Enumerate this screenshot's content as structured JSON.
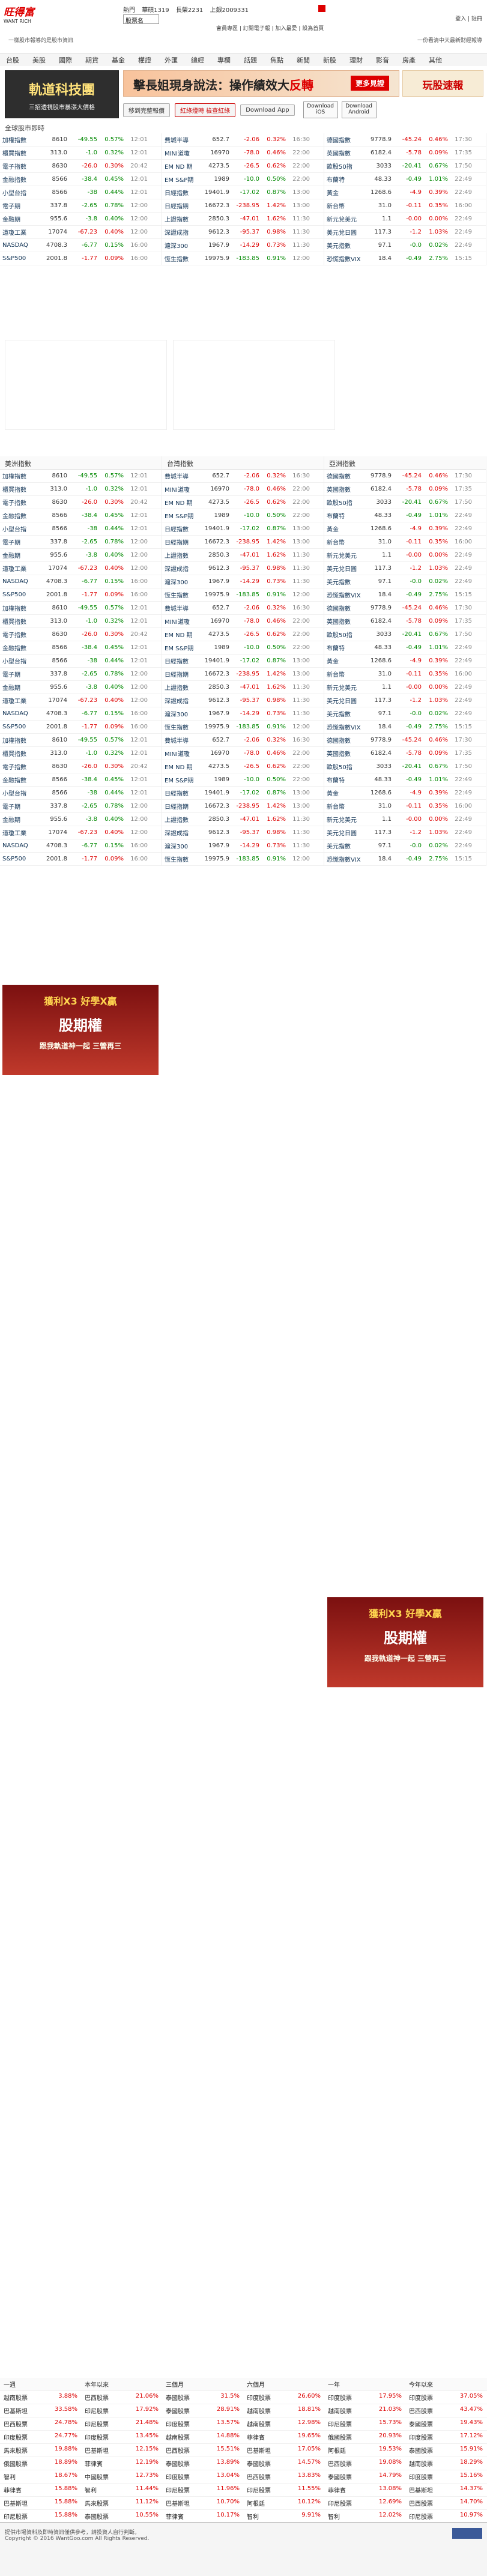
{
  "header": {
    "logo_text": "旺得富",
    "logo_sub": "WANT RICH",
    "hot_label": "熱門",
    "hot_items": [
      "華碩1319",
      "長榮2231",
      "上銀2009331"
    ],
    "select_value": "股票名",
    "top_links": "會員專區 | 訂閱電子報 | 加入最愛 | 設為首頁",
    "right_links": "登入 | 註冊",
    "slogan": "一樣股市報導的是股市資訊",
    "slogan_right": "一份看清中天最新財經報導",
    "nav": [
      "台股",
      "美股",
      "國際",
      "期貨",
      "基金",
      "權證",
      "外匯",
      "總經",
      "專欄",
      "話題",
      "焦點",
      "新聞",
      "新股",
      "理財",
      "影音",
      "房產",
      "其他"
    ]
  },
  "banner": {
    "ad1_title": "軌道科技團",
    "ad1_sub": "三招透視股市暴漲大價格",
    "ad2_text": "擊長姐現身說法：操作績效大",
    "ad2_bold": "反轉",
    "ad2_more": "更多見證",
    "ad3_text": "玩股速報",
    "buttons": [
      "移到完整報價",
      "紅綠燈時 檢查紅綠",
      "Download App"
    ],
    "download1": "Download iOS",
    "download2": "Download Android"
  },
  "section_title": "全球股市即時",
  "quotes": {
    "col1": [
      {
        "n": "加權指數",
        "v": "8610",
        "c": "-49.55",
        "p": "0.57%",
        "t": "12:01",
        "d": "dn"
      },
      {
        "n": "櫃買指數",
        "v": "313.0",
        "c": "-1.0",
        "p": "0.32%",
        "t": "12:01",
        "d": "dn"
      },
      {
        "n": "電子指數",
        "v": "8630",
        "c": "-26.0",
        "p": "0.30%",
        "t": "20:42",
        "d": "up"
      },
      {
        "n": "金融指數",
        "v": "8566",
        "c": "-38.4",
        "p": "0.45%",
        "t": "12:01",
        "d": "dn"
      },
      {
        "n": "小型台指",
        "v": "8566",
        "c": "-38",
        "p": "0.44%",
        "t": "12:01",
        "d": "dn"
      },
      {
        "n": "電子期",
        "v": "337.8",
        "c": "-2.65",
        "p": "0.78%",
        "t": "12:00",
        "d": "dn"
      },
      {
        "n": "金融期",
        "v": "955.6",
        "c": "-3.8",
        "p": "0.40%",
        "t": "12:00",
        "d": "dn"
      },
      {
        "n": "道瓊工業",
        "v": "17074",
        "c": "-67.23",
        "p": "0.40%",
        "t": "12:00",
        "d": "up"
      },
      {
        "n": "NASDAQ",
        "v": "4708.3",
        "c": "-6.77",
        "p": "0.15%",
        "t": "16:00",
        "d": "dn"
      },
      {
        "n": "S&P500",
        "v": "2001.8",
        "c": "-1.77",
        "p": "0.09%",
        "t": "16:00",
        "d": "up"
      }
    ],
    "col2": [
      {
        "n": "費城半導",
        "v": "652.7",
        "c": "-2.06",
        "p": "0.32%",
        "t": "16:30",
        "d": "up"
      },
      {
        "n": "MINI道瓊",
        "v": "16970",
        "c": "-78.0",
        "p": "0.46%",
        "t": "22:00",
        "d": "up"
      },
      {
        "n": "EM ND 期",
        "v": "4273.5",
        "c": "-26.5",
        "p": "0.62%",
        "t": "22:00",
        "d": "up"
      },
      {
        "n": "EM S&P期",
        "v": "1989",
        "c": "-10.0",
        "p": "0.50%",
        "t": "22:00",
        "d": "dn"
      },
      {
        "n": "日經指數",
        "v": "19401.9",
        "c": "-17.02",
        "p": "0.87%",
        "t": "13:00",
        "d": "dn"
      },
      {
        "n": "日經指期",
        "v": "16672.3",
        "c": "-238.95",
        "p": "1.42%",
        "t": "13:00",
        "d": "up"
      },
      {
        "n": "上證指數",
        "v": "2850.3",
        "c": "-47.01",
        "p": "1.62%",
        "t": "11:30",
        "d": "up"
      },
      {
        "n": "深證成指",
        "v": "9612.3",
        "c": "-95.37",
        "p": "0.98%",
        "t": "11:30",
        "d": "up"
      },
      {
        "n": "滬深300",
        "v": "1967.9",
        "c": "-14.29",
        "p": "0.73%",
        "t": "11:30",
        "d": "up"
      },
      {
        "n": "恆生指數",
        "v": "19975.9",
        "c": "-183.85",
        "p": "0.91%",
        "t": "12:00",
        "d": "dn"
      }
    ],
    "col3": [
      {
        "n": "德國指數",
        "v": "9778.9",
        "c": "-45.24",
        "p": "0.46%",
        "t": "17:30",
        "d": "up"
      },
      {
        "n": "英國指數",
        "v": "6182.4",
        "c": "-5.78",
        "p": "0.09%",
        "t": "17:35",
        "d": "up"
      },
      {
        "n": "歐股50指",
        "v": "3033",
        "c": "-20.41",
        "p": "0.67%",
        "t": "17:50",
        "d": "dn"
      },
      {
        "n": "布蘭特",
        "v": "48.33",
        "c": "-0.49",
        "p": "1.01%",
        "t": "22:49",
        "d": "dn"
      },
      {
        "n": "黃金",
        "v": "1268.6",
        "c": "-4.9",
        "p": "0.39%",
        "t": "22:49",
        "d": "up"
      },
      {
        "n": "新台幣",
        "v": "31.0",
        "c": "-0.11",
        "p": "0.35%",
        "t": "16:00",
        "d": "up"
      },
      {
        "n": "新元兌美元",
        "v": "1.1",
        "c": "-0.00",
        "p": "0.00%",
        "t": "22:49",
        "d": "up"
      },
      {
        "n": "美元兌日圓",
        "v": "117.3",
        "c": "-1.2",
        "p": "1.03%",
        "t": "22:49",
        "d": "up"
      },
      {
        "n": "美元指數",
        "v": "97.1",
        "c": "-0.0",
        "p": "0.02%",
        "t": "22:49",
        "d": "dn"
      },
      {
        "n": "恐慌指數VIX",
        "v": "18.4",
        "c": "-0.49",
        "p": "2.75%",
        "t": "15:15",
        "d": "dn"
      }
    ]
  },
  "middle_titles": [
    "美洲指數",
    "台灣指數",
    "亞洲指數"
  ],
  "promo": {
    "top": "獲利X3 好學X贏",
    "main": "股期權",
    "sub": "跟我軌道神一起 三營再三"
  },
  "table_headers": [
    "一週",
    "本年以來",
    "三個月",
    "六個月",
    "一年",
    "今年以來"
  ],
  "fund_rows": [
    [
      "越南股票",
      "3.88%",
      "巴西股票",
      "21.06%",
      "泰國股票",
      "31.5%",
      "印度股票",
      "26.60%",
      "印度股票",
      "17.95%",
      "印度股票",
      "37.05%"
    ],
    [
      "巴基斯坦",
      "33.58%",
      "印尼股票",
      "17.92%",
      "泰國股票",
      "28.91%",
      "越南股票",
      "18.81%",
      "越南股票",
      "21.03%",
      "巴西股票",
      "43.47%"
    ],
    [
      "巴西股票",
      "24.78%",
      "印尼股票",
      "21.48%",
      "印度股票",
      "13.57%",
      "越南股票",
      "12.98%",
      "印尼股票",
      "15.73%",
      "泰國股票",
      "19.43%"
    ],
    [
      "印度股票",
      "24.77%",
      "印度股票",
      "13.45%",
      "越南股票",
      "14.88%",
      "菲律賓",
      "19.65%",
      "俄國股票",
      "20.93%",
      "印度股票",
      "17.12%"
    ],
    [
      "馬來股票",
      "19.88%",
      "巴基斯坦",
      "12.15%",
      "巴西股票",
      "15.51%",
      "巴基斯坦",
      "17.05%",
      "阿根廷",
      "19.53%",
      "泰國股票",
      "15.91%"
    ],
    [
      "俄國股票",
      "18.89%",
      "菲律賓",
      "12.19%",
      "泰國股票",
      "13.89%",
      "泰國股票",
      "14.57%",
      "巴西股票",
      "19.08%",
      "越南股票",
      "18.29%"
    ],
    [
      "智利",
      "18.67%",
      "中國股票",
      "12.73%",
      "印度股票",
      "13.04%",
      "巴西股票",
      "13.83%",
      "泰國股票",
      "14.79%",
      "印度股票",
      "15.16%"
    ],
    [
      "菲律賓",
      "15.88%",
      "智利",
      "11.44%",
      "印尼股票",
      "11.96%",
      "印尼股票",
      "11.55%",
      "菲律賓",
      "13.08%",
      "巴基斯坦",
      "14.37%"
    ],
    [
      "巴基斯坦",
      "15.88%",
      "馬來股票",
      "11.12%",
      "巴基斯坦",
      "10.70%",
      "阿根廷",
      "10.12%",
      "印尼股票",
      "12.69%",
      "巴西股票",
      "14.70%"
    ],
    [
      "印尼股票",
      "15.88%",
      "泰國股票",
      "10.55%",
      "菲律賓",
      "10.17%",
      "智利",
      "9.91%",
      "智利",
      "12.02%",
      "印尼股票",
      "10.97%"
    ]
  ],
  "footer": {
    "line1": "提供市場資料及即時資訊僅供參考，請投資人自行判斷。",
    "line2": "Copyright © 2016 WantGoo.com All Rights Reserved."
  }
}
